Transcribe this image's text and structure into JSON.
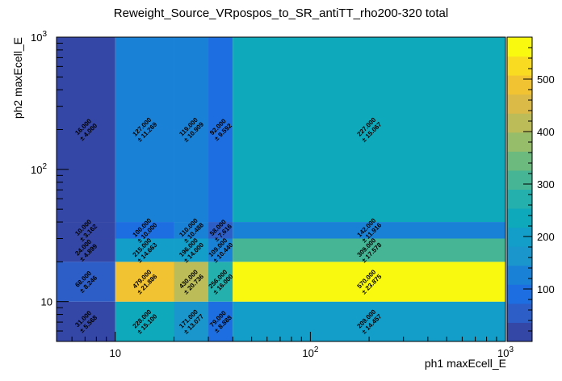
{
  "chart_data": {
    "type": "heatmap",
    "title": "Reweight_Source_VRpospos_to_SR_antiTT_rho200-320 total",
    "xlabel": "ph1 maxEcell_E",
    "ylabel": "ph2 maxEcell_E",
    "x_scale": "log",
    "y_scale": "log",
    "xlim": [
      5,
      1000
    ],
    "ylim": [
      5,
      1000
    ],
    "x_bin_edges": [
      5,
      10,
      20,
      30,
      40,
      1000
    ],
    "y_bin_edges": [
      5,
      10,
      20,
      30,
      40,
      1000
    ],
    "x_ticks": [
      {
        "value": 10,
        "label": "10"
      },
      {
        "value": 100,
        "label": "10",
        "exp": "2"
      },
      {
        "value": 1000,
        "label": "10",
        "exp": "3"
      }
    ],
    "y_ticks": [
      {
        "value": 10,
        "label": "10"
      },
      {
        "value": 100,
        "label": "10",
        "exp": "2"
      },
      {
        "value": 1000,
        "label": "10",
        "exp": "3"
      }
    ],
    "z_range": [
      0,
      580
    ],
    "colorbar_ticks": [
      "100",
      "200",
      "300",
      "400",
      "500"
    ],
    "cells": [
      {
        "row": 0,
        "values": [
          31,
          228,
          171,
          79,
          209
        ],
        "labels": [
          "31.000",
          "228.000",
          "171.000",
          "79.000",
          "209.000"
        ],
        "errors": [
          "± 5.568",
          "± 15.100",
          "± 13.077",
          "± 8.888",
          "± 14.457"
        ]
      },
      {
        "row": 1,
        "values": [
          68,
          479,
          430,
          256,
          570
        ],
        "labels": [
          "68.000",
          "479.000",
          "430.000",
          "256.000",
          "570.000"
        ],
        "errors": [
          "± 8.246",
          "± 21.886",
          "± 20.736",
          "± 16.000",
          "± 23.875"
        ]
      },
      {
        "row": 2,
        "values": [
          24,
          215,
          196,
          109,
          309
        ],
        "labels": [
          "24.000",
          "215.000",
          "196.000",
          "109.000",
          "309.000"
        ],
        "errors": [
          "± 4.899",
          "± 14.663",
          "± 14.000",
          "± 10.440",
          "± 17.578"
        ]
      },
      {
        "row": 3,
        "values": [
          10,
          100,
          110,
          58,
          142
        ],
        "labels": [
          "10.000",
          "100.000",
          "110.000",
          "58.000",
          "142.000"
        ],
        "errors": [
          "± 3.162",
          "± 10.000",
          "± 10.488",
          "± 7.616",
          "± 11.916"
        ]
      },
      {
        "row": 4,
        "values": [
          16,
          127,
          119,
          92,
          227
        ],
        "labels": [
          "16.000",
          "127.000",
          "119.000",
          "92.000",
          "227.000"
        ],
        "errors": [
          "± 4.000",
          "± 11.269",
          "± 10.909",
          "± 9.592",
          "± 15.067"
        ]
      }
    ],
    "palette": [
      "#3446a6",
      "#2d5ec8",
      "#1d6ee0",
      "#1a82d6",
      "#1a96cc",
      "#129ec8",
      "#0ea9bb",
      "#24b0ac",
      "#45b595",
      "#6cba7e",
      "#95bd6a",
      "#bcbd59",
      "#dcba47",
      "#f1c232",
      "#f9dc22",
      "#f9f910"
    ]
  }
}
